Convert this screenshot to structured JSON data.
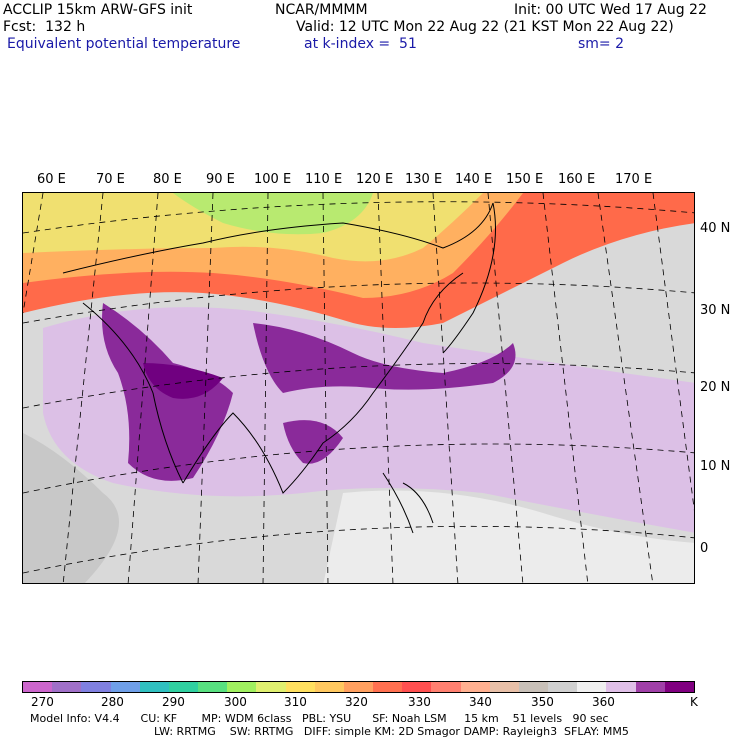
{
  "header": {
    "model": "ACCLIP 15km ARW-GFS init",
    "center": "NCAR/MMMM",
    "init": "Init: 00 UTC Wed 17 Aug 22",
    "fcst": "Fcst:  132 h",
    "valid": "Valid: 12 UTC Mon 22 Aug 22 (21 KST Mon 22 Aug 22)",
    "field": "Equivalent potential temperature",
    "level": "at k-index =  51",
    "smooth": "sm= 2"
  },
  "lon_labels": [
    "60 E",
    "70 E",
    "80 E",
    "90 E",
    "100 E",
    "110 E",
    "120 E",
    "130 E",
    "140 E",
    "150 E",
    "160 E",
    "170 E"
  ],
  "lat_labels": [
    "40 N",
    "30 N",
    "20 N",
    "10 N",
    "0"
  ],
  "colorbar": {
    "colors": [
      "#cc66cc",
      "#a070c8",
      "#8080e0",
      "#6f9fe8",
      "#30c0c0",
      "#30d0a0",
      "#58e080",
      "#a0f060",
      "#e0f070",
      "#ffe060",
      "#ffc860",
      "#ffa060",
      "#ff7050",
      "#ff5050",
      "#ff8070",
      "#ffb090",
      "#e8c0a8",
      "#c8c0b8",
      "#d0d0d0",
      "#f0f0f0",
      "#e0c0e8",
      "#a040a8",
      "#800080"
    ],
    "ticks": [
      "270",
      "280",
      "290",
      "300",
      "310",
      "320",
      "330",
      "340",
      "350",
      "360"
    ],
    "unit": "K"
  },
  "info": {
    "line1": "Model Info: V4.4      CU: KF       MP: WDM 6class   PBL: YSU      SF: Noah LSM     15 km    51 levels   90 sec",
    "line2": "LW: RRTMG    SW: RRTMG   DIFF: simple KM: 2D Smagor DAMP: Rayleigh3  SFLAY: MM5"
  }
}
